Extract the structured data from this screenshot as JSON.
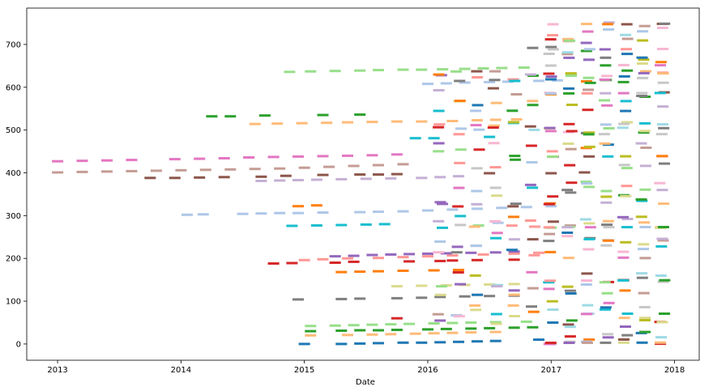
{
  "chart_data": {
    "type": "scatter",
    "marker": "horizontal-dash",
    "title": "",
    "xlabel": "Date",
    "ylabel": "",
    "xlim": [
      2012.75,
      2018.2
    ],
    "ylim": [
      -38,
      785
    ],
    "xticks": [
      2013,
      2014,
      2015,
      2016,
      2017,
      2018
    ],
    "xtick_labels": [
      "2013",
      "2014",
      "2015",
      "2016",
      "2017",
      "2018"
    ],
    "yticks": [
      0,
      100,
      200,
      300,
      400,
      500,
      600,
      700
    ],
    "ytick_labels": [
      "0",
      "100",
      "200",
      "300",
      "400",
      "500",
      "600",
      "700"
    ],
    "grid": false,
    "legend": "none",
    "palette": [
      "#1f77b4",
      "#aec7e8",
      "#ff7f0e",
      "#ffbb78",
      "#2ca02c",
      "#98df8a",
      "#d62728",
      "#ff9896",
      "#9467bd",
      "#c5b0d5",
      "#8c564b",
      "#c49c94",
      "#e377c2",
      "#f7b6d2",
      "#7f7f7f",
      "#c7c7c7",
      "#bcbd22",
      "#dbdb8d",
      "#17becf",
      "#9edae5"
    ],
    "series": [
      {
        "color": "#e377c2",
        "x": [
          2013.0,
          2013.2,
          2013.4,
          2013.6,
          2013.95,
          2014.15,
          2014.35,
          2014.55,
          2014.75,
          2014.95,
          2015.15,
          2015.35,
          2015.55,
          2015.75
        ],
        "y": [
          427,
          428,
          429,
          430,
          432,
          433,
          434,
          436,
          437,
          438,
          439,
          440,
          441,
          443
        ]
      },
      {
        "color": "#c49c94",
        "x": [
          2013.0,
          2013.2,
          2013.4,
          2013.6,
          2013.8,
          2014.0,
          2014.2,
          2014.4,
          2014.6,
          2014.8,
          2015.0,
          2015.2,
          2015.4,
          2015.6,
          2015.8
        ],
        "y": [
          401,
          402,
          403,
          404,
          405,
          406,
          407,
          408,
          409,
          410,
          412,
          414,
          416,
          418,
          420
        ]
      },
      {
        "color": "#8c564b",
        "x": [
          2013.75,
          2013.95,
          2014.15,
          2014.35,
          2014.65,
          2014.85,
          2015.15,
          2015.45,
          2015.6,
          2015.75,
          2016.5,
          2017.0,
          2017.27
        ],
        "y": [
          388,
          388,
          389,
          390,
          391,
          393,
          395,
          396,
          396,
          397,
          399,
          399,
          401
        ]
      },
      {
        "color": "#2ca02c",
        "x": [
          2014.25,
          2014.4,
          2014.68,
          2015.15,
          2015.45
        ],
        "y": [
          532,
          532,
          534,
          535,
          536
        ]
      },
      {
        "color": "#ffbb78",
        "x": [
          2014.6,
          2014.78,
          2014.98,
          2015.18,
          2015.35,
          2015.55,
          2015.75,
          2015.95,
          2016.2,
          2016.4,
          2016.55,
          2016.72
        ],
        "y": [
          514,
          515,
          516,
          517,
          518,
          519,
          520,
          520,
          521,
          523,
          524,
          525
        ]
      },
      {
        "color": "#98df8a",
        "x": [
          2014.88,
          2015.05,
          2015.25,
          2015.45,
          2015.6,
          2015.8,
          2015.95,
          2016.12,
          2016.3,
          2016.45,
          2016.6,
          2016.78
        ],
        "y": [
          636,
          637,
          638,
          639,
          640,
          641,
          641,
          642,
          643,
          644,
          645,
          646
        ]
      },
      {
        "color": "#aec7e8",
        "x": [
          2014.05,
          2014.18,
          2014.5,
          2014.65,
          2014.8,
          2014.95,
          2015.15,
          2015.45,
          2015.6,
          2015.8,
          2016.0,
          2016.2,
          2016.4,
          2016.6,
          2016.8,
          2017.0
        ],
        "y": [
          302,
          303,
          304,
          305,
          306,
          306,
          307,
          308,
          309,
          310,
          312,
          314,
          316,
          318,
          320,
          322
        ]
      },
      {
        "color": "#aec7e8",
        "x": [
          2016.0,
          2016.15,
          2016.3,
          2016.5,
          2016.65,
          2016.9,
          2017.05
        ],
        "y": [
          608,
          609,
          611,
          612,
          613,
          615,
          616
        ]
      },
      {
        "color": "#17becf",
        "x": [
          2014.9,
          2015.1,
          2015.3,
          2015.5,
          2015.65,
          2015.9,
          2016.05,
          2016.5
        ],
        "y": [
          276,
          277,
          278,
          279,
          280,
          481,
          481,
          484
        ]
      },
      {
        "color": "#ff7f0e",
        "x": [
          2014.95,
          2015.1,
          2015.3,
          2015.45,
          2015.6,
          2015.8,
          2016.05,
          2016.25
        ],
        "y": [
          322,
          324,
          168,
          169,
          170,
          171,
          172,
          173
        ]
      },
      {
        "color": "#ff9896",
        "x": [
          2015.0,
          2015.15,
          2015.35,
          2015.6,
          2015.8,
          2016.0,
          2016.2,
          2016.45,
          2016.7,
          2016.9
        ],
        "y": [
          196,
          198,
          200,
          201,
          203,
          205,
          207,
          209,
          211,
          213
        ]
      },
      {
        "color": "#d62728",
        "x": [
          2014.75,
          2014.9,
          2015.25,
          2015.4,
          2015.75,
          2015.85,
          2016.1,
          2016.2,
          2016.4,
          2016.7
        ],
        "y": [
          188,
          189,
          190,
          192,
          60,
          193,
          194,
          195,
          196,
          197
        ]
      },
      {
        "color": "#1f77b4",
        "x": [
          2015.0,
          2015.3,
          2015.45,
          2015.6,
          2015.8,
          2015.95,
          2016.1,
          2016.25,
          2016.4,
          2016.55,
          2016.9
        ],
        "y": [
          0,
          0,
          1,
          2,
          3,
          3,
          4,
          5,
          6,
          7,
          10
        ]
      },
      {
        "color": "#7f7f7f",
        "x": [
          2014.95,
          2015.3,
          2015.45,
          2015.75,
          2015.95,
          2016.1,
          2016.3,
          2016.5,
          2016.7,
          2016.85,
          2017.0
        ],
        "y": [
          104,
          105,
          106,
          107,
          108,
          110,
          111,
          112,
          113,
          692,
          694
        ]
      },
      {
        "color": "#c5b0d5",
        "x": [
          2014.65,
          2014.8,
          2014.95,
          2015.1,
          2015.3,
          2015.5,
          2015.7,
          2015.95,
          2016.1,
          2016.25
        ],
        "y": [
          381,
          382,
          383,
          384,
          385,
          386,
          387,
          388,
          390,
          392
        ]
      },
      {
        "color": "#dbdb8d",
        "x": [
          2015.75,
          2015.95,
          2016.15,
          2016.3,
          2016.5,
          2016.7
        ],
        "y": [
          135,
          136,
          137,
          138,
          139,
          140
        ]
      },
      {
        "color": "#9467bd",
        "x": [
          2015.25,
          2015.4,
          2015.55,
          2015.7,
          2015.85,
          2016.0,
          2016.15,
          2016.35,
          2016.55,
          2016.7
        ],
        "y": [
          205,
          206,
          208,
          209,
          210,
          211,
          212,
          213,
          214,
          216
        ]
      },
      {
        "color": "#2ca02c",
        "x": [
          2015.05,
          2015.3,
          2015.45,
          2015.6,
          2015.75,
          2016.0,
          2016.15,
          2016.35,
          2016.5,
          2016.7,
          2016.85
        ],
        "y": [
          30,
          31,
          32,
          32,
          33,
          34,
          35,
          36,
          37,
          38,
          39
        ]
      },
      {
        "color": "#98df8a",
        "x": [
          2015.05,
          2015.25,
          2015.4,
          2015.55,
          2015.7,
          2015.85,
          2016.05,
          2016.2,
          2016.35,
          2016.55,
          2016.8
        ],
        "y": [
          42,
          43,
          44,
          45,
          46,
          47,
          48,
          49,
          50,
          51,
          52
        ]
      },
      {
        "color": "#ffbb78",
        "x": [
          2015.05,
          2015.35,
          2015.55,
          2015.7,
          2015.9,
          2016.05,
          2016.2,
          2016.35,
          2016.55
        ],
        "y": [
          20,
          21,
          22,
          23,
          24,
          25,
          26,
          27,
          28
        ]
      }
    ],
    "dense_region": {
      "x_range": [
        2016.0,
        2017.95
      ],
      "columns_x": [
        2016.1,
        2016.25,
        2016.4,
        2016.55,
        2016.7,
        2016.85,
        2017.0,
        2017.15,
        2017.3,
        2017.45,
        2017.6,
        2017.75,
        2017.9
      ],
      "note_free": true
    }
  }
}
